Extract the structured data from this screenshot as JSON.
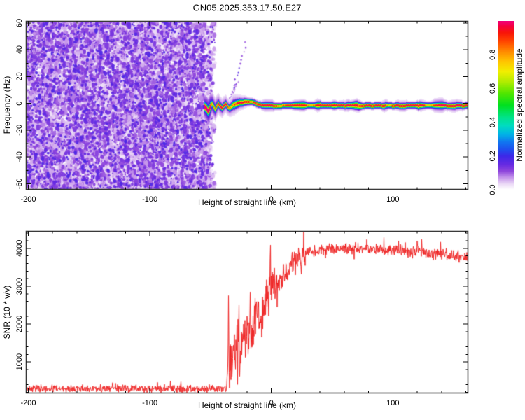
{
  "figure": {
    "title": "GN05.2025.353.17.50.E27",
    "background": "#ffffff"
  },
  "chart_data": [
    {
      "type": "heatmap",
      "title": "GN05.2025.353.17.50.E27",
      "x_axis": {
        "label": "Height of straight line (km)",
        "min": -202,
        "max": 162,
        "major_ticks": [
          -200,
          -100,
          0,
          100
        ],
        "major_labels": [
          "-200",
          "-100",
          "0",
          "100"
        ],
        "minor_step": 20
      },
      "y_axis": {
        "label": "Frequency (Hz)",
        "min": -64.5,
        "max": 61.5,
        "major_ticks": [
          -60,
          -40,
          -20,
          0,
          20,
          40,
          60
        ],
        "major_labels": [
          "-60",
          "-40",
          "-20",
          "0",
          "20",
          "40",
          "60"
        ],
        "minor_step": 10
      },
      "colorbar": {
        "label": "Normalized spectral amplitude",
        "min": 0,
        "max": 1,
        "tick_values": [
          0,
          0.2,
          0.4,
          0.6,
          0.8
        ],
        "tick_labels": [
          "0.0",
          "0.2",
          "0.4",
          "0.6",
          "0.8"
        ],
        "colormap": [
          [
            0.0,
            "#ffffff"
          ],
          [
            0.03,
            "#eedff7"
          ],
          [
            0.07,
            "#c89aeb"
          ],
          [
            0.11,
            "#8f46dc"
          ],
          [
            0.15,
            "#662ae2"
          ],
          [
            0.2,
            "#3c28e8"
          ],
          [
            0.24,
            "#1e50ee"
          ],
          [
            0.28,
            "#1173f0"
          ],
          [
            0.33,
            "#00b4e6"
          ],
          [
            0.38,
            "#00dcc0"
          ],
          [
            0.43,
            "#00e388"
          ],
          [
            0.5,
            "#00e020"
          ],
          [
            0.57,
            "#50e600"
          ],
          [
            0.64,
            "#b2ec00"
          ],
          [
            0.7,
            "#f2ee00"
          ],
          [
            0.76,
            "#ffc400"
          ],
          [
            0.82,
            "#ff8800"
          ],
          [
            0.88,
            "#ff4400"
          ],
          [
            0.93,
            "#f81508"
          ],
          [
            0.97,
            "#f4003e"
          ],
          [
            1.0,
            "#f0007e"
          ]
        ]
      },
      "noise_field": {
        "x_start": -202,
        "x_end": -49,
        "amplitude_range": [
          0.02,
          0.17
        ],
        "seed": 7
      },
      "signal_ridge": {
        "x_start": -55,
        "x_end": 162,
        "peak_amplitude": 1.0,
        "core_sigma_hz": 1.0,
        "centerline": [
          [
            -55,
            -2.0
          ],
          [
            -52,
            -5.0
          ],
          [
            -49,
            0.0
          ],
          [
            -46.5,
            -4.0
          ],
          [
            -44,
            -0.5
          ],
          [
            -41,
            -3.5
          ],
          [
            -38,
            -0.8
          ],
          [
            -35,
            -3.0
          ],
          [
            -31,
            -0.5
          ],
          [
            -27,
            0.8
          ],
          [
            -22,
            1.5
          ],
          [
            -16,
            1.2
          ],
          [
            -11,
            -0.8
          ],
          [
            -6,
            -1.3
          ],
          [
            0,
            -1.4
          ],
          [
            40,
            -1.2
          ],
          [
            80,
            -1.5
          ],
          [
            120,
            -1.3
          ],
          [
            162,
            -1.4
          ]
        ]
      },
      "streaks": [
        {
          "from": [
            -33,
            5
          ],
          "to": [
            -21,
            45
          ],
          "amplitude": 0.13
        },
        {
          "from": [
            -34,
            3
          ],
          "to": [
            -28,
            16
          ],
          "amplitude": 0.1
        },
        {
          "from": [
            -54,
            -10
          ],
          "to": [
            -49,
            -30
          ],
          "amplitude": 0.13
        }
      ]
    },
    {
      "type": "line",
      "x_axis": {
        "label": "Height of straight line (km)",
        "min": -202,
        "max": 162,
        "major_ticks": [
          -200,
          -100,
          0,
          100
        ],
        "major_labels": [
          "-200",
          "-100",
          "0",
          "100"
        ],
        "minor_step": 20
      },
      "y_axis": {
        "label": "SNR (10 * v/v)",
        "min": 170,
        "max": 4460,
        "major_ticks": [
          1000,
          2000,
          3000,
          4000
        ],
        "major_labels": [
          "1000",
          "2000",
          "3000",
          "4000"
        ],
        "minor_step": 200
      },
      "line_color": "#ee2222",
      "series": {
        "name": "SNR",
        "seed": 13,
        "envelope_points": [
          [
            -202,
            300
          ],
          [
            -150,
            295
          ],
          [
            -100,
            300
          ],
          [
            -60,
            295
          ],
          [
            -37,
            300
          ],
          [
            -35,
            1100
          ],
          [
            -32,
            900
          ],
          [
            -28,
            1500
          ],
          [
            -24,
            1300
          ],
          [
            -20,
            1800
          ],
          [
            -16,
            1600
          ],
          [
            -12,
            2100
          ],
          [
            -8,
            2300
          ],
          [
            -4,
            2600
          ],
          [
            -1,
            3000
          ],
          [
            2,
            2900
          ],
          [
            6,
            3100
          ],
          [
            10,
            3300
          ],
          [
            14,
            3400
          ],
          [
            18,
            3600
          ],
          [
            24,
            3800
          ],
          [
            30,
            3900
          ],
          [
            50,
            3980
          ],
          [
            70,
            4020
          ],
          [
            90,
            3980
          ],
          [
            110,
            3930
          ],
          [
            130,
            3880
          ],
          [
            150,
            3800
          ],
          [
            162,
            3760
          ]
        ],
        "noise_regions": [
          {
            "x_start": -202,
            "x_end": -36,
            "amp": 120
          },
          {
            "x_start": -36,
            "x_end": 5,
            "amp": 850
          },
          {
            "x_start": 5,
            "x_end": 28,
            "amp": 380
          },
          {
            "x_start": 28,
            "x_end": 162,
            "amp": 190
          }
        ],
        "spikes": [
          [
            -35.2,
            2750
          ],
          [
            -26.5,
            2500
          ],
          [
            -17.5,
            2850
          ],
          [
            -0.6,
            4090
          ]
        ]
      }
    }
  ]
}
